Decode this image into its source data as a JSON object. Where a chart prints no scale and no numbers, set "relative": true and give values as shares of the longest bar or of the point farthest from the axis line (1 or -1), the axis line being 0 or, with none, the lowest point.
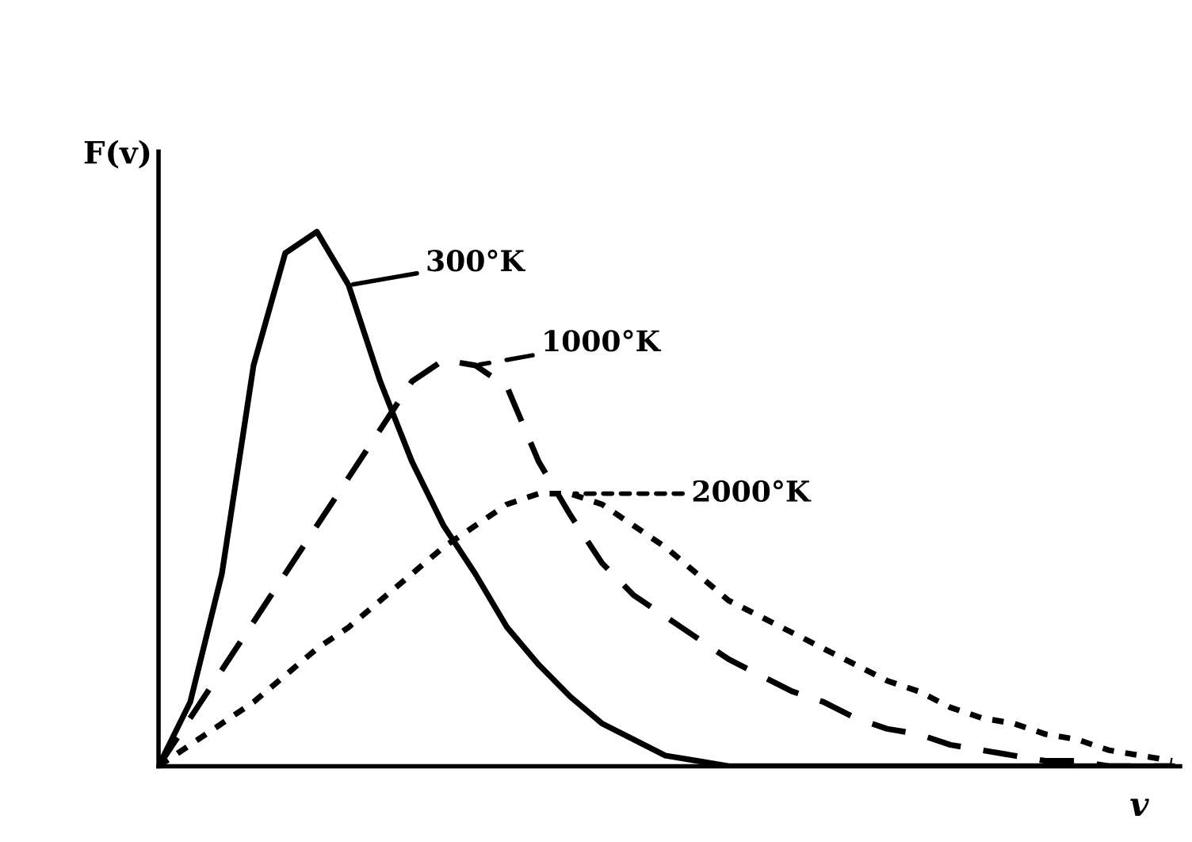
{
  "chart_data": {
    "type": "line",
    "relative": true,
    "xlabel": "v",
    "ylabel": "F(v)",
    "legend": "top left",
    "marker": "none",
    "categories": [
      null,
      null,
      null,
      null,
      null,
      null,
      null,
      null,
      null,
      null,
      null,
      null,
      null,
      null,
      null,
      null,
      null,
      null,
      null,
      null,
      null,
      null,
      null,
      null,
      null,
      null,
      null,
      null,
      null,
      null,
      null,
      null,
      null
    ],
    "series": [
      {
        "name": "300°K",
        "color": "#000000",
        "line_style": "solid",
        "values": [
          0,
          0.12,
          0.36,
          0.75,
          0.96,
          1.0,
          0.9,
          0.72,
          0.57,
          0.45,
          0.36,
          0.26,
          0.19,
          0.13,
          0.08,
          0.05,
          0.02,
          0.01,
          0,
          0,
          0,
          0,
          0,
          0,
          0,
          0,
          0,
          0,
          0,
          0,
          0,
          0,
          0
        ]
      },
      {
        "name": "1000°K",
        "color": "#000000",
        "line_style": "dashed",
        "values": [
          0,
          0.09,
          0.18,
          0.27,
          0.36,
          0.45,
          0.54,
          0.63,
          0.72,
          0.76,
          0.75,
          0.71,
          0.57,
          0.47,
          0.38,
          0.32,
          0.28,
          0.24,
          0.2,
          0.17,
          0.14,
          0.12,
          0.09,
          0.07,
          0.06,
          0.04,
          0.03,
          0.02,
          0.01,
          0.01,
          0,
          0,
          0
        ]
      },
      {
        "name": "2000°K",
        "color": "#000000",
        "line_style": "dotted",
        "values": [
          0,
          0.04,
          0.08,
          0.12,
          0.17,
          0.22,
          0.26,
          0.31,
          0.36,
          0.41,
          0.45,
          0.49,
          0.51,
          0.51,
          0.49,
          0.45,
          0.41,
          0.36,
          0.31,
          0.28,
          0.25,
          0.22,
          0.19,
          0.16,
          0.14,
          0.11,
          0.09,
          0.08,
          0.06,
          0.05,
          0.03,
          0.02,
          0.01
        ]
      }
    ]
  }
}
